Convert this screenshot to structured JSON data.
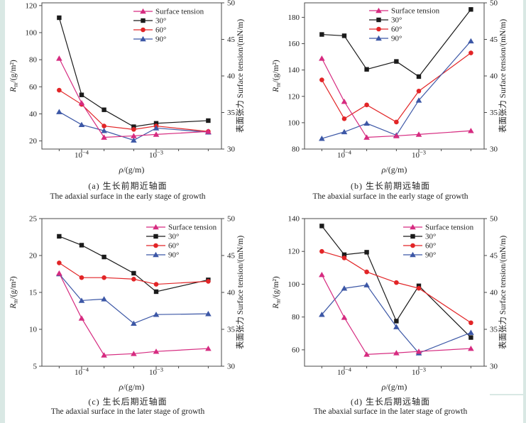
{
  "page": {
    "background": "#ffffff",
    "edge_strip_color": "#d9e8e4",
    "axis_color": "#4a4a4a",
    "text_color": "#222222"
  },
  "chart_data": [
    {
      "type": "line",
      "panel": "a",
      "caption_zh": "(a) 生长前期近轴面",
      "caption_en": "The adaxial surface in the early stage of growth",
      "xlabel": {
        "symbol": "ρ",
        "unit": "/(g/m)"
      },
      "ylabel_left": {
        "symbol": "R",
        "subscript": "m",
        "unit": "/(g/m²)"
      },
      "ylabel_right": "表面张力 Surface tension/(mN/m)",
      "xscale": "log",
      "xlim": [
        2.93e-05,
        0.00752
      ],
      "xticks": [
        {
          "value": 0.0001,
          "base": "10",
          "exp": "−4"
        },
        {
          "value": 0.001,
          "base": "10",
          "exp": "−3"
        }
      ],
      "xticks_minor": [
        5e-05,
        0.0002,
        0.0005,
        0.002,
        0.005
      ],
      "ylim_left": [
        14,
        122
      ],
      "yticks_left": [
        20,
        40,
        60,
        80,
        100,
        120
      ],
      "ylim_right": [
        30,
        50
      ],
      "yticks_right": [
        30,
        35,
        40,
        45,
        50
      ],
      "x": [
        5e-05,
        0.0001,
        0.0002,
        0.0005,
        0.001,
        0.005
      ],
      "series": [
        {
          "name": "Surface tension",
          "axis": "right",
          "color": "#d62b80",
          "marker": "triangle",
          "values": [
            42.4,
            36.3,
            31.6,
            31.8,
            32.0,
            32.4
          ]
        },
        {
          "name": "30°",
          "axis": "left",
          "color": "#1b1b1b",
          "marker": "square",
          "values": [
            111,
            54,
            43,
            30.5,
            33,
            35
          ]
        },
        {
          "name": "60°",
          "axis": "left",
          "color": "#e22527",
          "marker": "circle",
          "values": [
            57.5,
            47,
            31,
            28.5,
            31,
            27
          ]
        },
        {
          "name": "90°",
          "axis": "left",
          "color": "#3c57a6",
          "marker": "triangle",
          "values": [
            41.5,
            32,
            27.5,
            20.5,
            29.5,
            26.5
          ]
        }
      ],
      "legend": {
        "position": "top-right",
        "items": [
          "Surface tension",
          "30°",
          "60°",
          "90°"
        ]
      }
    },
    {
      "type": "line",
      "panel": "b",
      "caption_zh": "(b) 生长前期远轴面",
      "caption_en": "The abaxial surface in the early stage of growth",
      "xlabel": {
        "symbol": "ρ",
        "unit": "/(g/m)"
      },
      "ylabel_left": {
        "symbol": "R",
        "subscript": "m",
        "unit": "/(g/m²)"
      },
      "ylabel_right": "表面张力 Surface tension/(mN/m)",
      "xscale": "log",
      "xlim": [
        2.93e-05,
        0.00752
      ],
      "xticks": [
        {
          "value": 0.0001,
          "base": "10",
          "exp": "−4"
        },
        {
          "value": 0.001,
          "base": "10",
          "exp": "−3"
        }
      ],
      "xticks_minor": [
        5e-05,
        0.0002,
        0.0005,
        0.002,
        0.005
      ],
      "ylim_left": [
        80,
        191
      ],
      "yticks_left": [
        80,
        100,
        120,
        140,
        160,
        180
      ],
      "ylim_right": [
        30,
        50
      ],
      "yticks_right": [
        30,
        35,
        40,
        45,
        50
      ],
      "x": [
        5e-05,
        0.0001,
        0.0002,
        0.0005,
        0.001,
        0.005
      ],
      "series": [
        {
          "name": "Surface tension",
          "axis": "right",
          "color": "#d62b80",
          "marker": "triangle",
          "values": [
            42.4,
            36.5,
            31.6,
            31.8,
            32.0,
            32.5
          ]
        },
        {
          "name": "30°",
          "axis": "left",
          "color": "#1b1b1b",
          "marker": "square",
          "values": [
            167,
            166,
            140.5,
            146.5,
            135,
            186
          ]
        },
        {
          "name": "60°",
          "axis": "left",
          "color": "#e22527",
          "marker": "circle",
          "values": [
            132.5,
            103,
            113.5,
            100.5,
            124,
            153
          ]
        },
        {
          "name": "90°",
          "axis": "left",
          "color": "#3c57a6",
          "marker": "triangle",
          "values": [
            88,
            93,
            99.5,
            90.5,
            117,
            162
          ]
        }
      ],
      "legend": {
        "position": "top-center",
        "items": [
          "Surface tension",
          "30°",
          "60°",
          "90°"
        ]
      }
    },
    {
      "type": "line",
      "panel": "c",
      "caption_zh": "(c) 生长后期近轴面",
      "caption_en": "The adaxial surface in the later stage of growth",
      "xlabel": {
        "symbol": "ρ",
        "unit": "/(g/m)"
      },
      "ylabel_left": {
        "symbol": "R",
        "subscript": "m",
        "unit": "/(g/m²)"
      },
      "ylabel_right": "表面张力 Surface tension/(mN/m)",
      "xscale": "log",
      "xlim": [
        2.93e-05,
        0.00752
      ],
      "xticks": [
        {
          "value": 0.0001,
          "base": "10",
          "exp": "−4"
        },
        {
          "value": 0.001,
          "base": "10",
          "exp": "−3"
        }
      ],
      "xticks_minor": [
        5e-05,
        0.0002,
        0.0005,
        0.002,
        0.005
      ],
      "ylim_left": [
        5,
        25
      ],
      "yticks_left": [
        5,
        10,
        15,
        20,
        25
      ],
      "ylim_right": [
        30,
        50
      ],
      "yticks_right": [
        30,
        35,
        40,
        45,
        50
      ],
      "x": [
        5e-05,
        0.0001,
        0.0002,
        0.0005,
        0.001,
        0.005
      ],
      "series": [
        {
          "name": "Surface tension",
          "axis": "right",
          "color": "#d62b80",
          "marker": "triangle",
          "values": [
            42.6,
            36.5,
            31.5,
            31.7,
            32.0,
            32.4
          ]
        },
        {
          "name": "30°",
          "axis": "left",
          "color": "#1b1b1b",
          "marker": "square",
          "values": [
            22.6,
            21.4,
            19.8,
            17.6,
            15.1,
            16.7
          ]
        },
        {
          "name": "60°",
          "axis": "left",
          "color": "#e22527",
          "marker": "circle",
          "values": [
            19.0,
            17.0,
            17.0,
            16.8,
            16.1,
            16.5
          ]
        },
        {
          "name": "90°",
          "axis": "left",
          "color": "#3c57a6",
          "marker": "triangle",
          "values": [
            17.5,
            13.9,
            14.1,
            10.8,
            12.0,
            12.1
          ]
        }
      ],
      "legend": {
        "position": "top-right",
        "items": [
          "Surface tension",
          "30°",
          "60°",
          "90°"
        ]
      }
    },
    {
      "type": "line",
      "panel": "d",
      "caption_zh": "(d) 生长后期远轴面",
      "caption_en": "The abaxial surface in the later stage of growth",
      "xlabel": {
        "symbol": "ρ",
        "unit": "/(g/m)"
      },
      "ylabel_left": {
        "symbol": "R",
        "subscript": "m",
        "unit": "/(g/m²)"
      },
      "ylabel_right": "表面张力 Surface tension/(mN/m)",
      "xscale": "log",
      "xlim": [
        2.93e-05,
        0.00752
      ],
      "xticks": [
        {
          "value": 0.0001,
          "base": "10",
          "exp": "−4"
        },
        {
          "value": 0.001,
          "base": "10",
          "exp": "−3"
        }
      ],
      "xticks_minor": [
        5e-05,
        0.0002,
        0.0005,
        0.002,
        0.005
      ],
      "ylim_left": [
        50,
        140
      ],
      "yticks_left": [
        60,
        80,
        100,
        120,
        140
      ],
      "ylim_right": [
        30,
        50
      ],
      "yticks_right": [
        30,
        35,
        40,
        45,
        50
      ],
      "x": [
        5e-05,
        0.0001,
        0.0002,
        0.0005,
        0.001,
        0.005
      ],
      "series": [
        {
          "name": "Surface tension",
          "axis": "right",
          "color": "#d62b80",
          "marker": "triangle",
          "values": [
            42.4,
            36.6,
            31.6,
            31.8,
            32.0,
            32.4
          ]
        },
        {
          "name": "30°",
          "axis": "left",
          "color": "#1b1b1b",
          "marker": "square",
          "values": [
            135.5,
            118,
            119.5,
            77.5,
            99,
            67.5
          ]
        },
        {
          "name": "60°",
          "axis": "left",
          "color": "#e22527",
          "marker": "circle",
          "values": [
            120,
            116,
            107.5,
            101,
            97.5,
            76.5
          ]
        },
        {
          "name": "90°",
          "axis": "left",
          "color": "#3c57a6",
          "marker": "triangle",
          "values": [
            81.5,
            97.5,
            99.5,
            74,
            58,
            70.5
          ]
        }
      ],
      "legend": {
        "position": "top-right",
        "items": [
          "Surface tension",
          "30°",
          "60°",
          "90°"
        ]
      }
    }
  ]
}
